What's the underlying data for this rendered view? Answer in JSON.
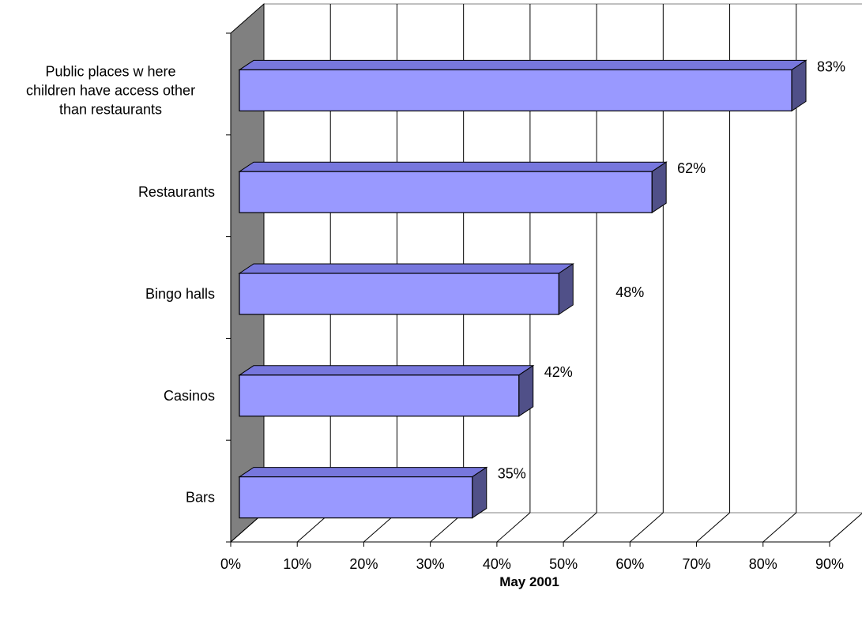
{
  "chart_data": {
    "type": "bar",
    "orientation": "horizontal",
    "style": "3d",
    "title": "",
    "xlabel": "May 2001",
    "ylabel": "",
    "xlim": [
      0,
      90
    ],
    "x_ticks": [
      0,
      10,
      20,
      30,
      40,
      50,
      60,
      70,
      80,
      90
    ],
    "x_tick_labels": [
      "0%",
      "10%",
      "20%",
      "30%",
      "40%",
      "50%",
      "60%",
      "70%",
      "80%",
      "90%"
    ],
    "grid": true,
    "legend": "none",
    "categories": [
      [
        "Public places w here",
        "children have access other",
        "than restaurants"
      ],
      [
        "Restaurants"
      ],
      [
        "Bingo halls"
      ],
      [
        "Casinos"
      ],
      [
        "Bars"
      ]
    ],
    "values": [
      83,
      62,
      48,
      42,
      35
    ],
    "data_labels": [
      "83%",
      "62%",
      "48%",
      "42%",
      "35%"
    ],
    "colors": {
      "bar_front": "#9999FF",
      "bar_top": "#7777DD",
      "bar_side": "#505088",
      "wall": "#808080",
      "grid": "#000000"
    }
  }
}
